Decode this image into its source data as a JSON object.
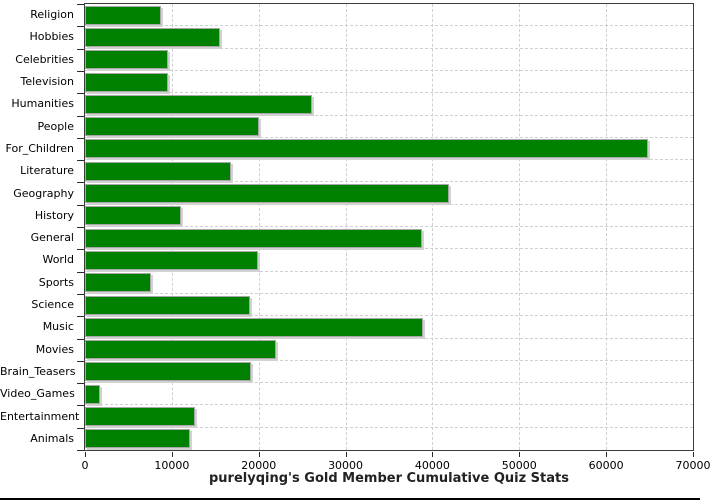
{
  "chart_data": {
    "type": "bar",
    "orientation": "horizontal",
    "title": "purelyqing's Gold Member Cumulative Quiz Stats",
    "categories": [
      "Religion",
      "Hobbies",
      "Celebrities",
      "Television",
      "Humanities",
      "People",
      "For_Children",
      "Literature",
      "Geography",
      "History",
      "General",
      "World",
      "Sports",
      "Science",
      "Music",
      "Movies",
      "Brain_Teasers",
      "Video_Games",
      "Entertainment",
      "Animals"
    ],
    "values": [
      8700,
      15600,
      9500,
      9500,
      26100,
      20000,
      64800,
      16800,
      41900,
      11000,
      38800,
      19900,
      7600,
      19000,
      38900,
      22000,
      19100,
      1700,
      12700,
      12100
    ],
    "xlabel": "",
    "ylabel": "",
    "xlim": [
      0,
      70000
    ],
    "x_ticks": [
      0,
      10000,
      20000,
      30000,
      40000,
      50000,
      60000,
      70000
    ],
    "grid": "both-dashed",
    "legend": "none",
    "bar_color": "#008000",
    "bar_outline_color": "#a8a8a8",
    "bar_shadow_color": "#d2d2d2",
    "gridline_color": "#cfcfd4",
    "axis_color": "#2b2b2b",
    "background_color": "#ffffff"
  }
}
